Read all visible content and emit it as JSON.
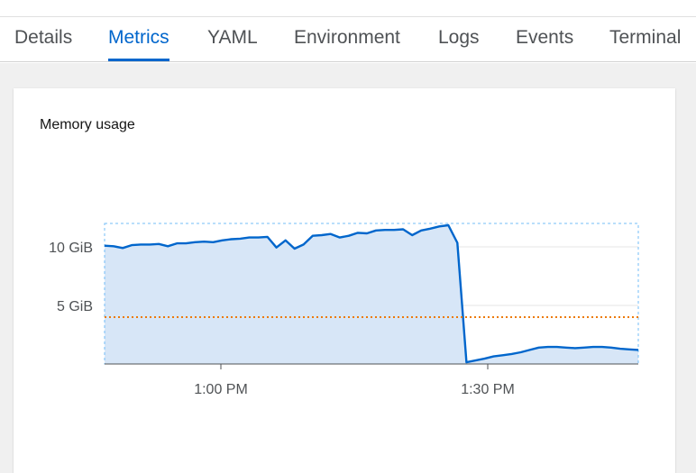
{
  "tabs": [
    {
      "label": "Details",
      "active": false
    },
    {
      "label": "Metrics",
      "active": true
    },
    {
      "label": "YAML",
      "active": false
    },
    {
      "label": "Environment",
      "active": false
    },
    {
      "label": "Logs",
      "active": false
    },
    {
      "label": "Events",
      "active": false
    },
    {
      "label": "Terminal",
      "active": false
    }
  ],
  "card": {
    "title": "Memory usage"
  },
  "colors": {
    "accent": "#0066cc",
    "area_fill": "#d7e6f7",
    "threshold": "#ec7a08",
    "page_bg": "#f0f0f0"
  },
  "chart_data": {
    "type": "area",
    "title": "Memory usage",
    "xlabel": "",
    "ylabel": "",
    "x_ticks": [
      "1:00 PM",
      "1:30 PM"
    ],
    "y_ticks": [
      "5 GiB",
      "10 GiB"
    ],
    "ylim": [
      0,
      12
    ],
    "grid": "horizontal",
    "series": [
      {
        "values": [
          10.1,
          10.05,
          9.9,
          10.15,
          10.2,
          10.2,
          10.25,
          10.05,
          10.3,
          10.3,
          10.4,
          10.45,
          10.4,
          10.55,
          10.65,
          10.7,
          10.8,
          10.8,
          10.85,
          9.95,
          10.55,
          9.85,
          10.2,
          10.95,
          11.0,
          11.1,
          10.8,
          10.95,
          11.2,
          11.15,
          11.4,
          11.45,
          11.45,
          11.5,
          11.0,
          11.4,
          11.55,
          11.75,
          11.85,
          10.35,
          0.15,
          0.3,
          0.45,
          0.65,
          0.75,
          0.85,
          1.0,
          1.2,
          1.4,
          1.45,
          1.45,
          1.4,
          1.35,
          1.4,
          1.45,
          1.45,
          1.4,
          1.3,
          1.25,
          1.2
        ]
      },
      {
        "name": "threshold",
        "values": [
          4.0,
          4.0
        ]
      }
    ]
  }
}
